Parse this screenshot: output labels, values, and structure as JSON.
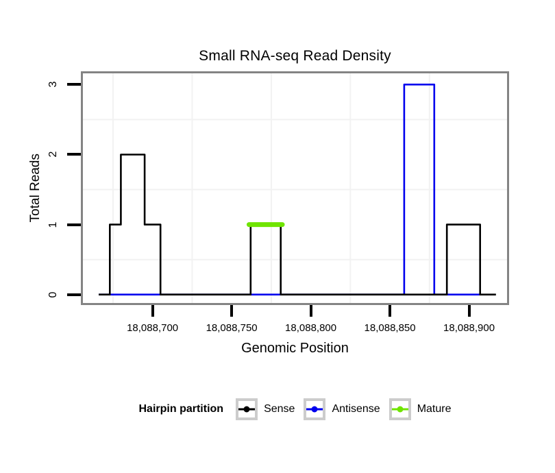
{
  "chart_data": {
    "type": "line",
    "title": "Small RNA-seq Read Density",
    "xlabel": "Genomic Position",
    "ylabel": "Total Reads",
    "x_domain": [
      18088656,
      18088924
    ],
    "y_domain": [
      -0.12,
      3.16
    ],
    "x_axis": {
      "ticks": [
        {
          "value": 18088700,
          "label": "18,088,700"
        },
        {
          "value": 18088750,
          "label": "18,088,750"
        },
        {
          "value": 18088800,
          "label": "18,088,800"
        },
        {
          "value": 18088850,
          "label": "18,088,850"
        },
        {
          "value": 18088900,
          "label": "18,088,900"
        }
      ]
    },
    "y_axis": {
      "ticks": [
        {
          "value": 0,
          "label": "0"
        },
        {
          "value": 1,
          "label": "1"
        },
        {
          "value": 2,
          "label": "2"
        },
        {
          "value": 3,
          "label": "3"
        }
      ]
    },
    "grid": {
      "minor_x": [
        18088675,
        18088725,
        18088775,
        18088825,
        18088875
      ],
      "minor_y": [
        0.5,
        1.5,
        2.5
      ],
      "color": "#f2f2f2"
    },
    "series": [
      {
        "name": "Antisense",
        "color": "#0000ee",
        "width": 2.6,
        "linecap": "butt",
        "points": [
          [
            18088666,
            0
          ],
          [
            18088859,
            0
          ],
          [
            18088859,
            3
          ],
          [
            18088878,
            3
          ],
          [
            18088878,
            0
          ],
          [
            18088907,
            0
          ]
        ]
      },
      {
        "name": "Sense",
        "color": "#000000",
        "width": 2.6,
        "linecap": "butt",
        "points": [
          [
            18088666,
            0
          ],
          [
            18088673,
            0
          ],
          [
            18088673,
            1
          ],
          [
            18088680,
            1
          ],
          [
            18088680,
            2
          ],
          [
            18088695,
            2
          ],
          [
            18088695,
            1
          ],
          [
            18088705,
            1
          ],
          [
            18088705,
            0
          ],
          [
            18088762,
            0
          ],
          [
            18088762,
            1
          ],
          [
            18088781,
            1
          ],
          [
            18088781,
            0
          ],
          [
            18088886,
            0
          ],
          [
            18088886,
            1
          ],
          [
            18088907,
            1
          ],
          [
            18088907,
            0
          ],
          [
            18088917,
            0
          ]
        ]
      },
      {
        "name": "Mature",
        "color": "#6fe400",
        "width": 7,
        "linecap": "round",
        "points": [
          [
            18088761,
            1
          ],
          [
            18088782,
            1
          ]
        ]
      }
    ]
  },
  "legend": {
    "title": "Hairpin partition",
    "items": [
      {
        "label": "Sense",
        "color": "#000000"
      },
      {
        "label": "Antisense",
        "color": "#0000ee"
      },
      {
        "label": "Mature",
        "color": "#6fe400"
      }
    ]
  },
  "style": {
    "panel_border_color": "#848484",
    "tick_color": "#000000",
    "grid_color": "#f2f2f2"
  }
}
